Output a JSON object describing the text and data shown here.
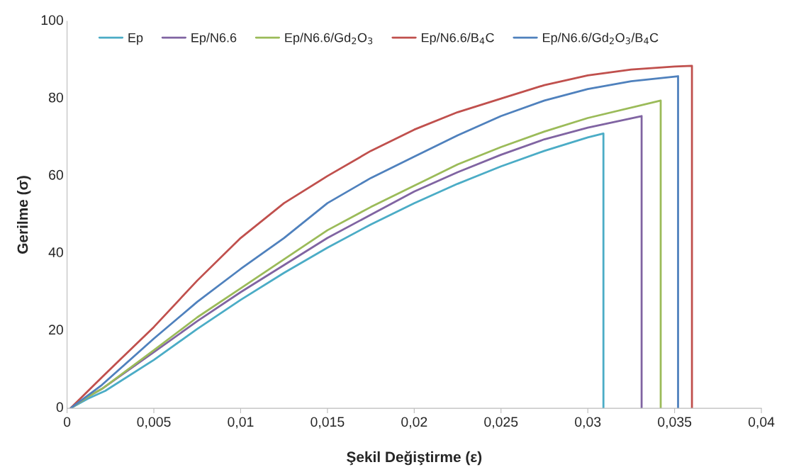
{
  "chart_data": {
    "type": "line",
    "xlabel": "Şekil Değiştirme (ε)",
    "ylabel": "Gerilme (σ)",
    "xlim": [
      0,
      0.04
    ],
    "ylim": [
      0,
      100
    ],
    "xticks": [
      {
        "value": 0,
        "label": "0"
      },
      {
        "value": 0.005,
        "label": "0,005"
      },
      {
        "value": 0.01,
        "label": "0,01"
      },
      {
        "value": 0.015,
        "label": "0,015"
      },
      {
        "value": 0.02,
        "label": "0,02"
      },
      {
        "value": 0.025,
        "label": "0,025"
      },
      {
        "value": 0.03,
        "label": "0,03"
      },
      {
        "value": 0.035,
        "label": "0,035"
      },
      {
        "value": 0.04,
        "label": "0,04"
      }
    ],
    "yticks": [
      0,
      20,
      40,
      60,
      80,
      100
    ],
    "grid": false,
    "legend": "top left",
    "line_style": "solid",
    "series": [
      {
        "name": "Ep",
        "color": "#4bacc6",
        "x": [
          0.0002,
          0.0012,
          0.0022,
          0.005,
          0.0075,
          0.01,
          0.0125,
          0.015,
          0.0175,
          0.02,
          0.0225,
          0.025,
          0.0275,
          0.03,
          0.0309,
          0.0309
        ],
        "values": [
          0,
          2.5,
          4.5,
          12.5,
          20.5,
          28,
          35,
          41.5,
          47.5,
          53,
          58,
          62.5,
          66.5,
          70,
          71,
          0
        ]
      },
      {
        "name": "Ep/N6.6",
        "color": "#8064a2",
        "x": [
          0.0002,
          0.0012,
          0.002,
          0.005,
          0.0075,
          0.01,
          0.0125,
          0.015,
          0.0175,
          0.02,
          0.0225,
          0.025,
          0.0275,
          0.03,
          0.0331,
          0.0331
        ],
        "values": [
          0,
          3,
          5,
          14.5,
          22.5,
          30,
          37,
          44,
          50,
          56,
          61,
          65.5,
          69.5,
          72.5,
          75.5,
          0
        ]
      },
      {
        "name": "Ep/N6.6/Gd$_{2}$O$_{3}$",
        "color": "#9bbb59",
        "x": [
          0.0002,
          0.0012,
          0.002,
          0.005,
          0.0075,
          0.01,
          0.0125,
          0.015,
          0.0175,
          0.02,
          0.0225,
          0.025,
          0.0275,
          0.03,
          0.0342,
          0.0342
        ],
        "values": [
          0,
          3,
          5,
          15,
          23.5,
          31,
          38.5,
          46,
          52,
          57.5,
          63,
          67.5,
          71.5,
          75,
          79.5,
          0
        ]
      },
      {
        "name": "Ep/N6.6/B$_{4}$C",
        "color": "#c0504d",
        "x": [
          0.0002,
          0.002,
          0.005,
          0.0075,
          0.01,
          0.0125,
          0.015,
          0.0175,
          0.02,
          0.0225,
          0.025,
          0.0275,
          0.03,
          0.0325,
          0.035,
          0.036,
          0.036
        ],
        "values": [
          0,
          8,
          21,
          33,
          44,
          53,
          60,
          66.5,
          72,
          76.5,
          80,
          83.5,
          86,
          87.5,
          88.3,
          88.5,
          0
        ]
      },
      {
        "name": "Ep/N6.6/Gd$_{2}$O$_{3}$/B$_{4}$C",
        "color": "#4f81bd",
        "x": [
          0.0002,
          0.002,
          0.005,
          0.0075,
          0.01,
          0.0125,
          0.015,
          0.0175,
          0.02,
          0.0225,
          0.025,
          0.0275,
          0.03,
          0.0325,
          0.0352,
          0.0352
        ],
        "values": [
          0,
          6,
          18,
          27.5,
          36,
          44,
          53,
          59.5,
          65,
          70.5,
          75.5,
          79.5,
          82.5,
          84.5,
          85.8,
          0
        ]
      }
    ]
  }
}
